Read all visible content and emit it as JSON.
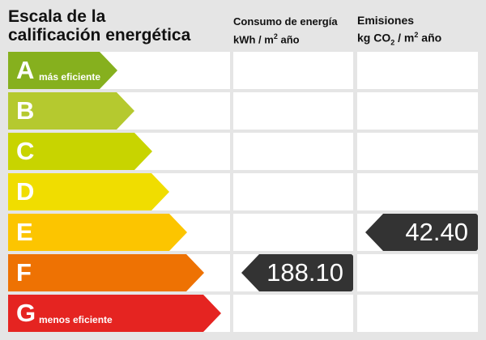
{
  "title_line1": "Escala de la",
  "title_line2": "calificación energética",
  "consumption": {
    "label": "Consumo de energía",
    "unit_a": "kWh / m",
    "unit_sup": "2",
    "unit_b": " año",
    "value": "188.10",
    "rating": "F"
  },
  "emissions": {
    "label": "Emisiones",
    "unit_a": "kg CO",
    "unit_sub": "2",
    "unit_c": " / m",
    "unit_sup": "2",
    "unit_b": " año",
    "value": "42.40",
    "rating": "E"
  },
  "ratings": [
    {
      "letter": "A",
      "note": "más eficiente",
      "color": "#86b01e"
    },
    {
      "letter": "B",
      "note": "",
      "color": "#b5c92f"
    },
    {
      "letter": "C",
      "note": "",
      "color": "#c8d400"
    },
    {
      "letter": "D",
      "note": "",
      "color": "#f0dd00"
    },
    {
      "letter": "E",
      "note": "",
      "color": "#fcc500"
    },
    {
      "letter": "F",
      "note": "",
      "color": "#ee7203"
    },
    {
      "letter": "G",
      "note": "menos eficiente",
      "color": "#e52421"
    }
  ]
}
